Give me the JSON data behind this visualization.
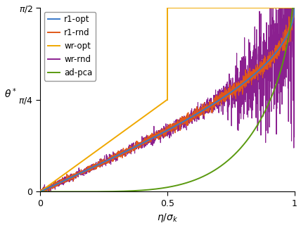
{
  "title": "",
  "xlabel": "$\\eta/\\sigma_k$",
  "ylabel": "$\\theta^*$",
  "xlim": [
    0,
    1.0
  ],
  "ylim": [
    0,
    1.5707963267948966
  ],
  "xticks": [
    0,
    0.5,
    1.0
  ],
  "xticklabels": [
    "0",
    "0.5",
    "1"
  ],
  "yticks": [
    0,
    0.7853981633974483,
    1.5707963267948966
  ],
  "yticklabels": [
    "0",
    "$\\pi/4$",
    "$\\pi/2$"
  ],
  "lines": {
    "r1_opt": {
      "color": "#3878c8",
      "lw": 1.4,
      "label": "r1-opt"
    },
    "r1_rnd": {
      "color": "#e05818",
      "lw": 0.8,
      "label": "r1-rnd"
    },
    "wr_opt": {
      "color": "#f0a800",
      "lw": 1.4,
      "label": "wr-opt"
    },
    "wr_rnd": {
      "color": "#8b2090",
      "lw": 0.8,
      "label": "wr-rnd"
    },
    "ad_pca": {
      "color": "#5a9a10",
      "lw": 1.4,
      "label": "ad-pca"
    }
  },
  "legend_loc": "upper left",
  "n_points": 2000,
  "noise_seed": 42
}
